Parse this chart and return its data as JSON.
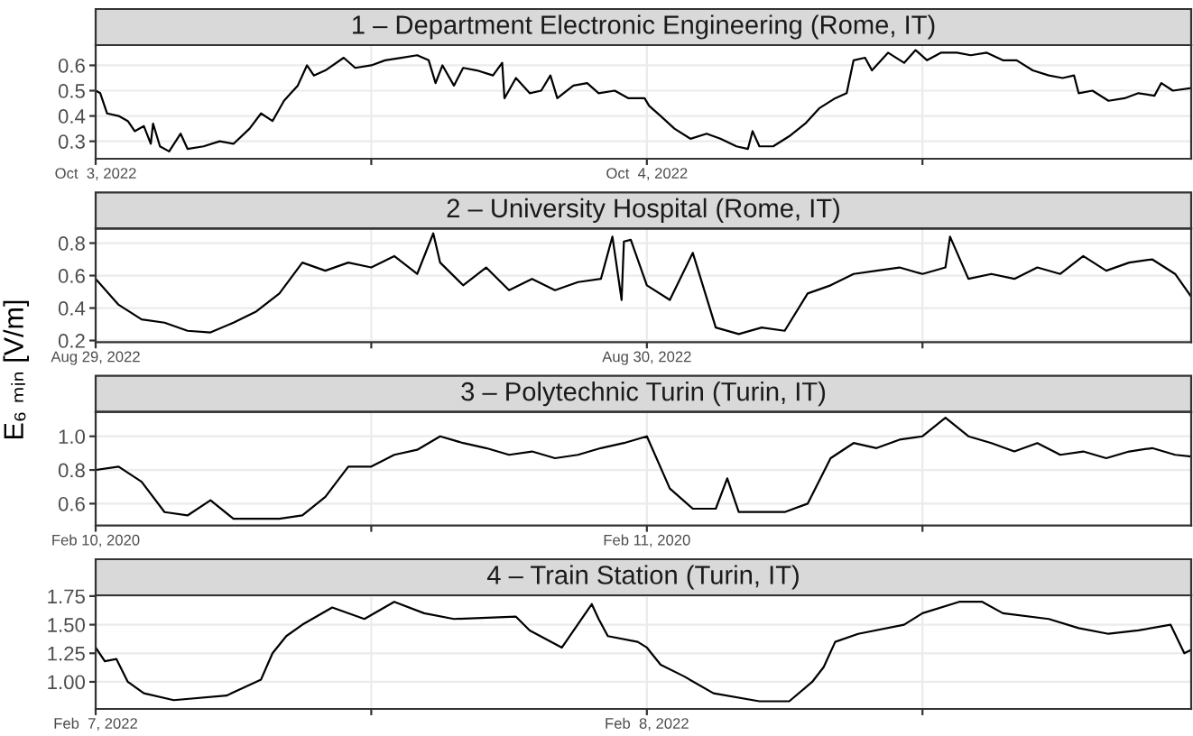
{
  "chart_data": [
    {
      "type": "line",
      "title": "1 – Department Electronic Engineering (Rome, IT)",
      "color": "#000000",
      "grid": true,
      "line_style": "solid",
      "x": [
        "2022-10-03T00:00",
        "2022-10-03T00:12",
        "2022-10-03T00:30",
        "2022-10-03T01:00",
        "2022-10-03T01:24",
        "2022-10-03T01:42",
        "2022-10-03T02:06",
        "2022-10-03T02:24",
        "2022-10-03T02:30",
        "2022-10-03T02:48",
        "2022-10-03T03:12",
        "2022-10-03T03:42",
        "2022-10-03T04:00",
        "2022-10-03T04:42",
        "2022-10-03T05:24",
        "2022-10-03T06:00",
        "2022-10-03T06:42",
        "2022-10-03T07:12",
        "2022-10-03T07:42",
        "2022-10-03T08:12",
        "2022-10-03T08:30",
        "2022-10-03T08:48",
        "2022-10-03T09:12",
        "2022-10-03T09:30",
        "2022-10-03T10:00",
        "2022-10-03T10:48",
        "2022-10-03T11:18",
        "2022-10-03T12:00",
        "2022-10-03T12:36",
        "2022-10-03T13:18",
        "2022-10-03T14:00",
        "2022-10-03T14:30",
        "2022-10-03T14:48",
        "2022-10-03T15:06",
        "2022-10-03T15:36",
        "2022-10-03T16:00",
        "2022-10-03T16:36",
        "2022-10-03T17:18",
        "2022-10-03T17:42",
        "2022-10-03T17:48",
        "2022-10-03T18:18",
        "2022-10-03T18:54",
        "2022-10-03T19:24",
        "2022-10-03T19:48",
        "2022-10-03T20:06",
        "2022-10-03T20:48",
        "2022-10-03T21:24",
        "2022-10-03T21:54",
        "2022-10-03T22:36",
        "2022-10-03T23:12",
        "2022-10-03T23:54",
        "2022-10-04T00:06",
        "2022-10-04T00:36",
        "2022-10-04T01:12",
        "2022-10-04T01:54",
        "2022-10-04T02:36",
        "2022-10-04T03:12",
        "2022-10-04T03:54",
        "2022-10-04T04:24",
        "2022-10-04T04:36",
        "2022-10-04T04:54",
        "2022-10-04T05:30",
        "2022-10-04T06:12",
        "2022-10-04T06:54",
        "2022-10-04T07:30",
        "2022-10-04T08:12",
        "2022-10-04T08:42",
        "2022-10-04T09:00",
        "2022-10-04T09:30",
        "2022-10-04T09:48",
        "2022-10-04T10:30",
        "2022-10-04T11:12",
        "2022-10-04T11:42",
        "2022-10-04T12:12",
        "2022-10-04T12:48",
        "2022-10-04T13:30",
        "2022-10-04T14:06",
        "2022-10-04T14:48",
        "2022-10-04T15:30",
        "2022-10-04T16:06",
        "2022-10-04T16:48",
        "2022-10-04T17:30",
        "2022-10-04T18:06",
        "2022-10-04T18:36",
        "2022-10-04T18:48",
        "2022-10-04T19:24",
        "2022-10-04T20:06",
        "2022-10-04T20:48",
        "2022-10-04T21:24",
        "2022-10-04T22:06",
        "2022-10-04T22:24",
        "2022-10-04T22:54",
        "2022-10-04T23:42"
      ],
      "values": [
        0.5,
        0.49,
        0.41,
        0.4,
        0.38,
        0.34,
        0.36,
        0.29,
        0.37,
        0.28,
        0.26,
        0.33,
        0.27,
        0.28,
        0.3,
        0.29,
        0.35,
        0.41,
        0.38,
        0.46,
        0.49,
        0.52,
        0.6,
        0.56,
        0.58,
        0.63,
        0.59,
        0.6,
        0.62,
        0.63,
        0.64,
        0.62,
        0.53,
        0.6,
        0.52,
        0.59,
        0.58,
        0.56,
        0.61,
        0.47,
        0.55,
        0.49,
        0.5,
        0.56,
        0.47,
        0.52,
        0.53,
        0.49,
        0.5,
        0.47,
        0.47,
        0.44,
        0.4,
        0.35,
        0.31,
        0.33,
        0.31,
        0.28,
        0.27,
        0.34,
        0.28,
        0.28,
        0.32,
        0.37,
        0.43,
        0.47,
        0.49,
        0.62,
        0.63,
        0.58,
        0.65,
        0.61,
        0.66,
        0.62,
        0.65,
        0.65,
        0.64,
        0.65,
        0.62,
        0.62,
        0.58,
        0.56,
        0.55,
        0.56,
        0.49,
        0.5,
        0.46,
        0.47,
        0.49,
        0.48,
        0.53,
        0.5,
        0.51
      ],
      "xlim": [
        "2022-10-03T00:00",
        "2022-10-04T23:42"
      ],
      "xticks": [
        {
          "value": "2022-10-03T00:00",
          "label": "Oct  3, 2022"
        },
        {
          "value": "2022-10-03T12:00",
          "label": null
        },
        {
          "value": "2022-10-04T00:00",
          "label": "Oct  4, 2022"
        },
        {
          "value": "2022-10-04T12:00",
          "label": null
        }
      ],
      "ylim": [
        0.231,
        0.68
      ],
      "yticks": [
        0.3,
        0.4,
        0.5,
        0.6
      ]
    },
    {
      "type": "line",
      "title": "2 – University Hospital (Rome, IT)",
      "ylabel": "E₆ ₘᵢₙ [V/m]",
      "color": "#000000",
      "grid": true,
      "line_style": "solid",
      "x": [
        "2022-08-29T00:00",
        "2022-08-29T01:00",
        "2022-08-29T02:00",
        "2022-08-29T03:00",
        "2022-08-29T04:00",
        "2022-08-29T05:00",
        "2022-08-29T06:00",
        "2022-08-29T07:00",
        "2022-08-29T08:00",
        "2022-08-29T09:00",
        "2022-08-29T10:00",
        "2022-08-29T11:00",
        "2022-08-29T12:00",
        "2022-08-29T13:00",
        "2022-08-29T14:00",
        "2022-08-29T14:42",
        "2022-08-29T15:00",
        "2022-08-29T16:00",
        "2022-08-29T17:00",
        "2022-08-29T18:00",
        "2022-08-29T19:00",
        "2022-08-29T20:00",
        "2022-08-29T21:00",
        "2022-08-29T22:00",
        "2022-08-29T22:30",
        "2022-08-29T22:54",
        "2022-08-29T23:00",
        "2022-08-29T23:18",
        "2022-08-30T00:00",
        "2022-08-30T01:00",
        "2022-08-30T02:00",
        "2022-08-30T03:00",
        "2022-08-30T04:00",
        "2022-08-30T05:00",
        "2022-08-30T06:00",
        "2022-08-30T07:00",
        "2022-08-30T08:00",
        "2022-08-30T09:00",
        "2022-08-30T10:00",
        "2022-08-30T11:00",
        "2022-08-30T12:00",
        "2022-08-30T13:00",
        "2022-08-30T13:12",
        "2022-08-30T14:00",
        "2022-08-30T15:00",
        "2022-08-30T16:00",
        "2022-08-30T17:00",
        "2022-08-30T18:00",
        "2022-08-30T19:00",
        "2022-08-30T20:00",
        "2022-08-30T21:00",
        "2022-08-30T22:00",
        "2022-08-30T23:00",
        "2022-08-30T23:42"
      ],
      "values": [
        0.58,
        0.42,
        0.33,
        0.31,
        0.26,
        0.25,
        0.31,
        0.38,
        0.49,
        0.68,
        0.63,
        0.68,
        0.65,
        0.72,
        0.61,
        0.86,
        0.68,
        0.54,
        0.65,
        0.51,
        0.58,
        0.51,
        0.56,
        0.58,
        0.84,
        0.45,
        0.81,
        0.82,
        0.54,
        0.45,
        0.74,
        0.28,
        0.24,
        0.28,
        0.26,
        0.49,
        0.54,
        0.61,
        0.63,
        0.65,
        0.61,
        0.65,
        0.84,
        0.58,
        0.61,
        0.58,
        0.65,
        0.61,
        0.72,
        0.63,
        0.68,
        0.7,
        0.61,
        0.47
      ],
      "xlim": [
        "2022-08-29T00:00",
        "2022-08-30T23:42"
      ],
      "xticks": [
        {
          "value": "2022-08-29T00:00",
          "label": "Aug 29, 2022"
        },
        {
          "value": "2022-08-29T12:00",
          "label": null
        },
        {
          "value": "2022-08-30T00:00",
          "label": "Aug 30, 2022"
        },
        {
          "value": "2022-08-30T12:00",
          "label": null
        }
      ],
      "ylim": [
        0.19,
        0.89
      ],
      "yticks": [
        0.2,
        0.4,
        0.6,
        0.8
      ]
    },
    {
      "type": "line",
      "title": "3 – Polytechnic Turin (Turin, IT)",
      "color": "#000000",
      "grid": true,
      "line_style": "solid",
      "x": [
        "2020-02-10T00:00",
        "2020-02-10T01:00",
        "2020-02-10T02:00",
        "2020-02-10T03:00",
        "2020-02-10T04:00",
        "2020-02-10T05:00",
        "2020-02-10T06:00",
        "2020-02-10T07:00",
        "2020-02-10T08:00",
        "2020-02-10T09:00",
        "2020-02-10T10:00",
        "2020-02-10T11:00",
        "2020-02-10T12:00",
        "2020-02-10T13:00",
        "2020-02-10T14:00",
        "2020-02-10T15:00",
        "2020-02-10T16:00",
        "2020-02-10T17:00",
        "2020-02-10T18:00",
        "2020-02-10T19:00",
        "2020-02-10T20:00",
        "2020-02-10T21:00",
        "2020-02-10T22:00",
        "2020-02-10T23:00",
        "2020-02-11T00:00",
        "2020-02-11T01:00",
        "2020-02-11T02:00",
        "2020-02-11T03:00",
        "2020-02-11T03:30",
        "2020-02-11T04:00",
        "2020-02-11T05:00",
        "2020-02-11T06:00",
        "2020-02-11T07:00",
        "2020-02-11T08:00",
        "2020-02-11T09:00",
        "2020-02-11T10:00",
        "2020-02-11T11:00",
        "2020-02-11T12:00",
        "2020-02-11T13:00",
        "2020-02-11T14:00",
        "2020-02-11T15:00",
        "2020-02-11T16:00",
        "2020-02-11T17:00",
        "2020-02-11T18:00",
        "2020-02-11T19:00",
        "2020-02-11T20:00",
        "2020-02-11T21:00",
        "2020-02-11T22:00",
        "2020-02-11T23:00",
        "2020-02-11T23:42"
      ],
      "values": [
        0.8,
        0.82,
        0.73,
        0.55,
        0.53,
        0.62,
        0.51,
        0.51,
        0.51,
        0.53,
        0.64,
        0.82,
        0.82,
        0.89,
        0.92,
        1.0,
        0.96,
        0.93,
        0.89,
        0.91,
        0.87,
        0.89,
        0.93,
        0.96,
        1.0,
        0.69,
        0.57,
        0.57,
        0.75,
        0.55,
        0.55,
        0.55,
        0.6,
        0.87,
        0.96,
        0.93,
        0.98,
        1.0,
        1.11,
        1.0,
        0.96,
        0.91,
        0.96,
        0.89,
        0.91,
        0.87,
        0.91,
        0.93,
        0.89,
        0.88
      ],
      "xlim": [
        "2020-02-10T00:00",
        "2020-02-11T23:42"
      ],
      "xticks": [
        {
          "value": "2020-02-10T00:00",
          "label": "Feb 10, 2020"
        },
        {
          "value": "2020-02-10T12:00",
          "label": null
        },
        {
          "value": "2020-02-11T00:00",
          "label": "Feb 11, 2020"
        },
        {
          "value": "2020-02-11T12:00",
          "label": null
        }
      ],
      "ylim": [
        0.47,
        1.145
      ],
      "yticks": [
        {
          "value": 0.6,
          "label": "0.6"
        },
        {
          "value": 0.8,
          "label": "0.8"
        },
        {
          "value": 1.0,
          "label": "1.0"
        }
      ]
    },
    {
      "type": "line",
      "title": "4 – Train Station (Turin, IT)",
      "color": "#000000",
      "grid": true,
      "line_style": "solid",
      "x": [
        "2022-02-07T00:00",
        "2022-02-07T00:24",
        "2022-02-07T00:54",
        "2022-02-07T01:24",
        "2022-02-07T02:06",
        "2022-02-07T03:24",
        "2022-02-07T05:42",
        "2022-02-07T07:12",
        "2022-02-07T07:42",
        "2022-02-07T08:18",
        "2022-02-07T09:00",
        "2022-02-07T10:18",
        "2022-02-07T11:42",
        "2022-02-07T13:00",
        "2022-02-07T14:18",
        "2022-02-07T15:36",
        "2022-02-07T18:18",
        "2022-02-07T18:54",
        "2022-02-07T20:18",
        "2022-02-07T21:36",
        "2022-02-07T21:54",
        "2022-02-07T22:18",
        "2022-02-07T23:36",
        "2022-02-08T00:00",
        "2022-02-08T00:36",
        "2022-02-08T01:36",
        "2022-02-08T02:54",
        "2022-02-08T04:54",
        "2022-02-08T06:12",
        "2022-02-08T07:12",
        "2022-02-08T07:42",
        "2022-02-08T08:12",
        "2022-02-08T09:12",
        "2022-02-08T11:12",
        "2022-02-08T12:00",
        "2022-02-08T13:36",
        "2022-02-08T14:36",
        "2022-02-08T15:30",
        "2022-02-08T17:30",
        "2022-02-08T18:48",
        "2022-02-08T20:06",
        "2022-02-08T21:24",
        "2022-02-08T22:48",
        "2022-02-08T23:24",
        "2022-02-08T23:42"
      ],
      "values": [
        1.3,
        1.18,
        1.2,
        1.0,
        0.9,
        0.84,
        0.88,
        1.02,
        1.25,
        1.4,
        1.5,
        1.65,
        1.55,
        1.7,
        1.6,
        1.55,
        1.57,
        1.45,
        1.3,
        1.68,
        1.55,
        1.4,
        1.35,
        1.3,
        1.15,
        1.05,
        0.9,
        0.83,
        0.83,
        1.0,
        1.13,
        1.35,
        1.42,
        1.5,
        1.6,
        1.7,
        1.7,
        1.6,
        1.55,
        1.47,
        1.42,
        1.45,
        1.5,
        1.25,
        1.28
      ],
      "xlim": [
        "2022-02-07T00:00",
        "2022-02-08T23:42"
      ],
      "xticks": [
        {
          "value": "2022-02-07T00:00",
          "label": "Feb  7, 2022"
        },
        {
          "value": "2022-02-07T12:00",
          "label": null
        },
        {
          "value": "2022-02-08T00:00",
          "label": "Feb  8, 2022"
        },
        {
          "value": "2022-02-08T12:00",
          "label": null
        }
      ],
      "ylim": [
        0.763,
        1.757
      ],
      "yticks": [
        {
          "value": 1.0,
          "label": "1.00"
        },
        {
          "value": 1.25,
          "label": "1.25"
        },
        {
          "value": 1.5,
          "label": "1.50"
        },
        {
          "value": 1.75,
          "label": "1.75"
        }
      ]
    }
  ]
}
